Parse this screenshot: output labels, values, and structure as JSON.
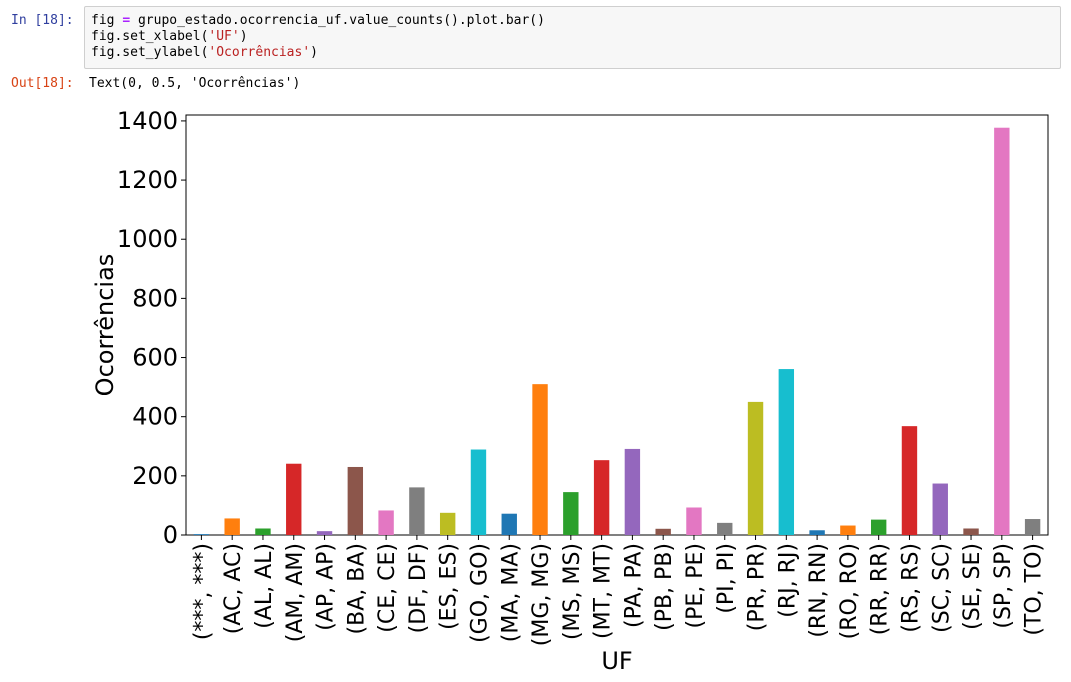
{
  "cell_in": {
    "prompt": "In [18]:",
    "lines": [
      {
        "pre": "fig ",
        "op": "=",
        "post": " grupo_estado.ocorrencia_uf.value_counts().plot.bar()"
      },
      {
        "pre": "fig.set_xlabel(",
        "str": "'UF'",
        "post": ")"
      },
      {
        "pre": "fig.set_ylabel(",
        "str": "'Ocorrências'",
        "post": ")"
      }
    ]
  },
  "cell_out": {
    "prompt": "Out[18]:",
    "text": "Text(0, 0.5, 'Ocorrências')"
  },
  "chart_data": {
    "type": "bar",
    "xlabel": "UF",
    "ylabel": "Ocorrências",
    "ylim": [
      0,
      1420
    ],
    "yticks": [
      0,
      200,
      400,
      600,
      800,
      1000,
      1200,
      1400
    ],
    "categories": [
      "(***, ***)",
      "(AC, AC)",
      "(AL, AL)",
      "(AM, AM)",
      "(AP, AP)",
      "(BA, BA)",
      "(CE, CE)",
      "(DF, DF)",
      "(ES, ES)",
      "(GO, GO)",
      "(MA, MA)",
      "(MG, MG)",
      "(MS, MS)",
      "(MT, MT)",
      "(PA, PA)",
      "(PB, PB)",
      "(PE, PE)",
      "(PI, PI)",
      "(PR, PR)",
      "(RJ, RJ)",
      "(RN, RN)",
      "(RO, RO)",
      "(RR, RR)",
      "(RS, RS)",
      "(SC, SC)",
      "(SE, SE)",
      "(SP, SP)",
      "(TO, TO)"
    ],
    "values": [
      3,
      56,
      22,
      241,
      13,
      230,
      83,
      161,
      75,
      289,
      72,
      510,
      145,
      253,
      291,
      21,
      93,
      41,
      450,
      561,
      16,
      32,
      52,
      368,
      174,
      22,
      1377,
      54
    ],
    "colors": [
      "#1f77b4",
      "#ff7f0e",
      "#2ca02c",
      "#d62728",
      "#9467bd",
      "#8c564b",
      "#e377c2",
      "#7f7f7f",
      "#bcbd22",
      "#17becf"
    ],
    "grid": false,
    "legend": "none"
  }
}
